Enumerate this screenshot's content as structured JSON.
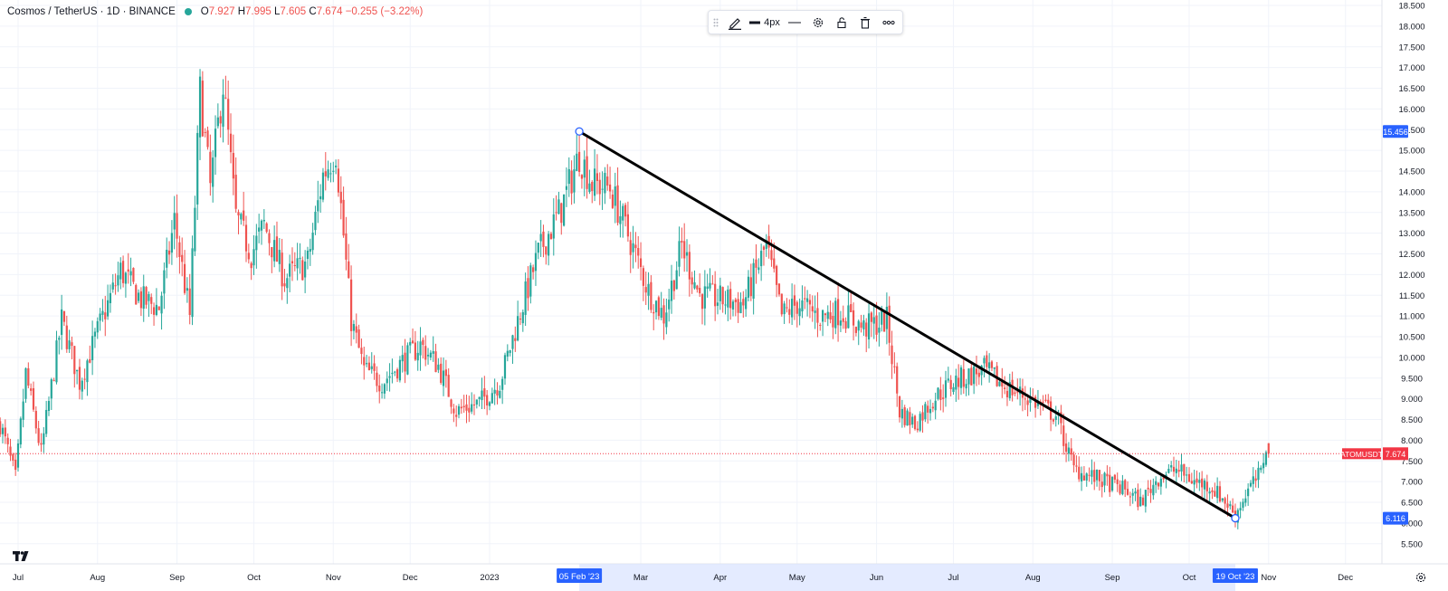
{
  "header": {
    "symbol": "Cosmos / TetherUS · 1D · BINANCE",
    "open_label": "O",
    "open": "7.927",
    "high_label": "H",
    "high": "7.995",
    "low_label": "L",
    "low": "7.605",
    "close_label": "C",
    "close": "7.674",
    "change": "−0.255 (−3.22%)"
  },
  "toolbar": {
    "icons": [
      "drag-handle-icon",
      "pencil-icon",
      "line-style-icon",
      "gear-icon",
      "lock-icon",
      "trash-icon",
      "more-icon"
    ],
    "line_width_label": "4px"
  },
  "colors": {
    "up": "#26a69a",
    "down": "#ef5350",
    "trendline": "#000000",
    "axis_highlight": "#2962ff",
    "price_tag": "#f23645"
  },
  "chart_data": {
    "type": "candlestick",
    "title": "Cosmos / TetherUS · 1D · BINANCE",
    "y_axis": {
      "position": "right",
      "ylim": [
        5.25,
        18.6
      ],
      "ticks": [
        "18.500",
        "18.000",
        "17.500",
        "17.000",
        "16.500",
        "16.000",
        "15.500",
        "15.000",
        "14.500",
        "14.000",
        "13.500",
        "13.000",
        "12.500",
        "12.000",
        "11.500",
        "11.000",
        "10.500",
        "10.000",
        "9.500",
        "9.000",
        "8.500",
        "8.000",
        "7.500",
        "7.000",
        "6.500",
        "6.000",
        "5.500"
      ]
    },
    "x_axis": {
      "ticks": [
        {
          "label": "Jul",
          "date": "2022-07-01"
        },
        {
          "label": "Aug",
          "date": "2022-08-01"
        },
        {
          "label": "Sep",
          "date": "2022-09-01"
        },
        {
          "label": "Oct",
          "date": "2022-10-01"
        },
        {
          "label": "Nov",
          "date": "2022-11-01"
        },
        {
          "label": "Dec",
          "date": "2022-12-01"
        },
        {
          "label": "2023",
          "date": "2023-01-01"
        },
        {
          "label": "Mar",
          "date": "2023-03-01"
        },
        {
          "label": "Apr",
          "date": "2023-04-01"
        },
        {
          "label": "May",
          "date": "2023-05-01"
        },
        {
          "label": "Jun",
          "date": "2023-06-01"
        },
        {
          "label": "Jul",
          "date": "2023-07-01"
        },
        {
          "label": "Aug",
          "date": "2023-08-01"
        },
        {
          "label": "Sep",
          "date": "2023-09-01"
        },
        {
          "label": "Oct",
          "date": "2023-10-01"
        },
        {
          "label": "Nov",
          "date": "2023-11-01"
        },
        {
          "label": "Dec",
          "date": "2023-12-01"
        }
      ],
      "highlighted": [
        {
          "label": "05 Feb '23",
          "date": "2023-02-05"
        },
        {
          "label": "19 Oct '23",
          "date": "2023-10-19"
        }
      ]
    },
    "trendline": {
      "start": {
        "date": "2023-02-05",
        "price": 15.456
      },
      "end": {
        "date": "2023-10-19",
        "price": 6.116
      }
    },
    "price_line": {
      "symbol": "ATOMUSDT",
      "price": 7.674
    },
    "axis_labels": [
      {
        "text": "15.456",
        "price": 15.456
      },
      {
        "text": "6.116",
        "price": 6.116
      }
    ],
    "price_path": [
      [
        "2022-06-24",
        8.4
      ],
      [
        "2022-06-30",
        7.1
      ],
      [
        "2022-07-04",
        9.6
      ],
      [
        "2022-07-10",
        7.7
      ],
      [
        "2022-07-18",
        10.9
      ],
      [
        "2022-07-25",
        9.4
      ],
      [
        "2022-08-02",
        10.8
      ],
      [
        "2022-08-10",
        12.1
      ],
      [
        "2022-08-18",
        11.4
      ],
      [
        "2022-08-25",
        11.2
      ],
      [
        "2022-08-31",
        13.3
      ],
      [
        "2022-09-06",
        11.0
      ],
      [
        "2022-09-10",
        16.4
      ],
      [
        "2022-09-14",
        14.1
      ],
      [
        "2022-09-19",
        16.6
      ],
      [
        "2022-09-24",
        13.4
      ],
      [
        "2022-09-30",
        12.5
      ],
      [
        "2022-10-05",
        13.2
      ],
      [
        "2022-10-13",
        11.9
      ],
      [
        "2022-10-22",
        12.3
      ],
      [
        "2022-10-28",
        14.4
      ],
      [
        "2022-11-02",
        15.0
      ],
      [
        "2022-11-08",
        10.9
      ],
      [
        "2022-11-13",
        9.7
      ],
      [
        "2022-11-20",
        9.4
      ],
      [
        "2022-11-28",
        9.9
      ],
      [
        "2022-12-05",
        10.3
      ],
      [
        "2022-12-12",
        9.8
      ],
      [
        "2022-12-19",
        8.7
      ],
      [
        "2022-12-28",
        8.9
      ],
      [
        "2023-01-05",
        9.4
      ],
      [
        "2023-01-14",
        11.3
      ],
      [
        "2023-01-20",
        12.5
      ],
      [
        "2023-01-29",
        13.6
      ],
      [
        "2023-02-05",
        14.9
      ],
      [
        "2023-02-10",
        14.2
      ],
      [
        "2023-02-17",
        14.1
      ],
      [
        "2023-02-25",
        12.8
      ],
      [
        "2023-03-04",
        11.6
      ],
      [
        "2023-03-10",
        11.0
      ],
      [
        "2023-03-17",
        12.7
      ],
      [
        "2023-03-24",
        11.5
      ],
      [
        "2023-04-01",
        11.4
      ],
      [
        "2023-04-10",
        11.3
      ],
      [
        "2023-04-19",
        12.7
      ],
      [
        "2023-04-25",
        11.0
      ],
      [
        "2023-05-01",
        11.3
      ],
      [
        "2023-05-10",
        11.0
      ],
      [
        "2023-05-18",
        11.1
      ],
      [
        "2023-05-27",
        10.7
      ],
      [
        "2023-06-05",
        10.9
      ],
      [
        "2023-06-10",
        8.7
      ],
      [
        "2023-06-16",
        8.4
      ],
      [
        "2023-06-23",
        9.0
      ],
      [
        "2023-07-01",
        9.4
      ],
      [
        "2023-07-13",
        9.7
      ],
      [
        "2023-07-21",
        9.3
      ],
      [
        "2023-07-31",
        9.0
      ],
      [
        "2023-08-10",
        8.6
      ],
      [
        "2023-08-17",
        7.3
      ],
      [
        "2023-08-25",
        7.1
      ],
      [
        "2023-09-06",
        6.8
      ],
      [
        "2023-09-12",
        6.5
      ],
      [
        "2023-09-19",
        7.1
      ],
      [
        "2023-09-26",
        7.3
      ],
      [
        "2023-10-03",
        7.0
      ],
      [
        "2023-10-09",
        6.9
      ],
      [
        "2023-10-14",
        6.6
      ],
      [
        "2023-10-19",
        6.2
      ],
      [
        "2023-10-24",
        6.8
      ],
      [
        "2023-10-29",
        7.2
      ],
      [
        "2023-10-31",
        7.9
      ],
      [
        "2023-11-01",
        7.7
      ]
    ]
  },
  "branding": {
    "logo_text": "TV"
  }
}
